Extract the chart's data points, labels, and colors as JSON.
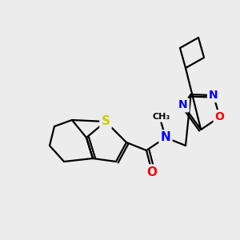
{
  "bg_color": "#ececec",
  "atom_colors": {
    "S": "#cccc00",
    "N": "#0000ff",
    "O": "#ff0000",
    "C": "#000000"
  },
  "line_color": "#000000",
  "line_width": 1.6,
  "figsize": [
    3.0,
    3.0
  ],
  "dpi": 100
}
